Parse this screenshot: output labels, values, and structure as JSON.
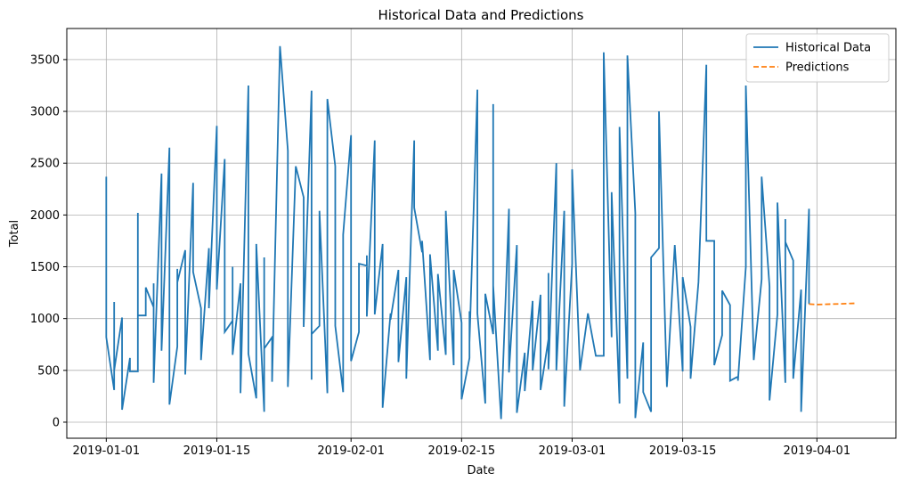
{
  "chart_data": {
    "type": "line",
    "title": "Historical Data and Predictions",
    "xlabel": "Date",
    "ylabel": "Total",
    "xlim": [
      "2018-12-27",
      "2019-04-11"
    ],
    "xticks": [
      "2019-01-01",
      "2019-01-15",
      "2019-02-01",
      "2019-02-15",
      "2019-03-01",
      "2019-03-15",
      "2019-04-01"
    ],
    "ylim": [
      -155,
      3800
    ],
    "yticks": [
      0,
      500,
      1000,
      1500,
      2000,
      2500,
      3000,
      3500
    ],
    "grid": true,
    "legend": "upper right",
    "series": [
      {
        "name": "Historical Data",
        "color": "#1f77b4",
        "linestyle": "solid",
        "x": [
          "2019-01-01",
          "2019-01-01",
          "2019-01-02",
          "2019-01-02",
          "2019-01-02",
          "2019-01-03",
          "2019-01-03",
          "2019-01-04",
          "2019-01-04",
          "2019-01-05",
          "2019-01-05",
          "2019-01-05",
          "2019-01-06",
          "2019-01-06",
          "2019-01-07",
          "2019-01-07",
          "2019-01-07",
          "2019-01-08",
          "2019-01-08",
          "2019-01-09",
          "2019-01-09",
          "2019-01-10",
          "2019-01-10",
          "2019-01-10",
          "2019-01-11",
          "2019-01-11",
          "2019-01-12",
          "2019-01-12",
          "2019-01-13",
          "2019-01-13",
          "2019-01-14",
          "2019-01-14",
          "2019-01-15",
          "2019-01-15",
          "2019-01-16",
          "2019-01-16",
          "2019-01-17",
          "2019-01-17",
          "2019-01-17",
          "2019-01-18",
          "2019-01-18",
          "2019-01-19",
          "2019-01-19",
          "2019-01-20",
          "2019-01-20",
          "2019-01-21",
          "2019-01-21",
          "2019-01-21",
          "2019-01-22",
          "2019-01-22",
          "2019-01-23",
          "2019-01-24",
          "2019-01-24",
          "2019-01-25",
          "2019-01-26",
          "2019-01-26",
          "2019-01-27",
          "2019-01-27",
          "2019-01-27",
          "2019-01-28",
          "2019-01-28",
          "2019-01-29",
          "2019-01-29",
          "2019-01-30",
          "2019-01-30",
          "2019-01-31",
          "2019-01-31",
          "2019-02-01",
          "2019-02-01",
          "2019-02-02",
          "2019-02-02",
          "2019-02-03",
          "2019-02-03",
          "2019-02-03",
          "2019-02-04",
          "2019-02-04",
          "2019-02-05",
          "2019-02-05",
          "2019-02-06",
          "2019-02-06",
          "2019-02-07",
          "2019-02-07",
          "2019-02-08",
          "2019-02-08",
          "2019-02-09",
          "2019-02-09",
          "2019-02-10",
          "2019-02-10",
          "2019-02-11",
          "2019-02-11",
          "2019-02-12",
          "2019-02-12",
          "2019-02-13",
          "2019-02-13",
          "2019-02-14",
          "2019-02-14",
          "2019-02-15",
          "2019-02-15",
          "2019-02-16",
          "2019-02-16",
          "2019-02-16",
          "2019-02-17",
          "2019-02-17",
          "2019-02-18",
          "2019-02-18",
          "2019-02-19",
          "2019-02-19",
          "2019-02-19",
          "2019-02-20",
          "2019-02-21",
          "2019-02-21",
          "2019-02-22",
          "2019-02-22",
          "2019-02-23",
          "2019-02-23",
          "2019-02-24",
          "2019-02-24",
          "2019-02-25",
          "2019-02-25",
          "2019-02-26",
          "2019-02-26",
          "2019-02-26",
          "2019-02-27",
          "2019-02-27",
          "2019-02-28",
          "2019-02-28",
          "2019-03-01",
          "2019-03-01",
          "2019-03-02",
          "2019-03-03",
          "2019-03-04",
          "2019-03-05",
          "2019-03-05",
          "2019-03-06",
          "2019-03-06",
          "2019-03-07",
          "2019-03-07",
          "2019-03-08",
          "2019-03-08",
          "2019-03-09",
          "2019-03-09",
          "2019-03-10",
          "2019-03-10",
          "2019-03-11",
          "2019-03-11",
          "2019-03-12",
          "2019-03-12",
          "2019-03-13",
          "2019-03-14",
          "2019-03-15",
          "2019-03-15",
          "2019-03-16",
          "2019-03-16",
          "2019-03-17",
          "2019-03-18",
          "2019-03-18",
          "2019-03-19",
          "2019-03-19",
          "2019-03-20",
          "2019-03-20",
          "2019-03-21",
          "2019-03-21",
          "2019-03-22",
          "2019-03-22",
          "2019-03-23",
          "2019-03-23",
          "2019-03-24",
          "2019-03-25",
          "2019-03-25",
          "2019-03-26",
          "2019-03-26",
          "2019-03-27",
          "2019-03-27",
          "2019-03-28",
          "2019-03-28",
          "2019-03-28",
          "2019-03-29",
          "2019-03-29",
          "2019-03-30",
          "2019-03-30",
          "2019-03-30",
          "2019-03-30",
          "2019-03-31",
          "2019-03-31",
          "2019-03-31",
          "2019-03-31"
        ],
        "values": [
          2370,
          820,
          310,
          1160,
          500,
          1010,
          120,
          620,
          490,
          490,
          2020,
          1030,
          1030,
          1300,
          1110,
          1340,
          380,
          2400,
          690,
          2650,
          170,
          730,
          1480,
          1350,
          1660,
          460,
          2310,
          1450,
          1100,
          600,
          1680,
          1100,
          2860,
          1280,
          2540,
          870,
          980,
          1500,
          650,
          1340,
          280,
          3250,
          660,
          230,
          1720,
          100,
          1590,
          710,
          820,
          390,
          3630,
          2620,
          340,
          2470,
          2170,
          920,
          3200,
          410,
          850,
          930,
          2040,
          280,
          3120,
          2470,
          930,
          290,
          1810,
          2770,
          590,
          870,
          1530,
          1510,
          1610,
          1020,
          2720,
          1040,
          1720,
          140,
          1050,
          990,
          1470,
          580,
          1400,
          420,
          2720,
          2070,
          1640,
          1750,
          600,
          1620,
          690,
          1430,
          650,
          2040,
          550,
          1470,
          960,
          220,
          620,
          1070,
          770,
          3210,
          1050,
          180,
          1240,
          850,
          3070,
          1320,
          30,
          2060,
          480,
          1710,
          90,
          670,
          300,
          1170,
          500,
          1230,
          310,
          800,
          1440,
          510,
          2500,
          500,
          2040,
          150,
          1530,
          2440,
          500,
          1050,
          640,
          640,
          3570,
          820,
          2220,
          180,
          2850,
          420,
          3540,
          2020,
          40,
          770,
          290,
          100,
          1590,
          1680,
          3000,
          340,
          1710,
          490,
          1400,
          920,
          420,
          1350,
          3450,
          1750,
          1750,
          550,
          840,
          1270,
          1130,
          400,
          440,
          400,
          1500,
          3250,
          600,
          1380,
          2370,
          1310,
          210,
          1040,
          2120,
          380,
          1960,
          1740,
          1560,
          420,
          1280,
          300,
          1190,
          100,
          2060,
          1330,
          1720,
          1140
        ]
      },
      {
        "name": "Predictions",
        "color": "#ff7f0e",
        "linestyle": "dashed",
        "x": [
          "2019-03-31",
          "2019-04-01",
          "2019-04-02",
          "2019-04-03",
          "2019-04-04",
          "2019-04-05",
          "2019-04-06"
        ],
        "values": [
          1140,
          1135,
          1138,
          1140,
          1142,
          1145,
          1148
        ]
      }
    ]
  }
}
